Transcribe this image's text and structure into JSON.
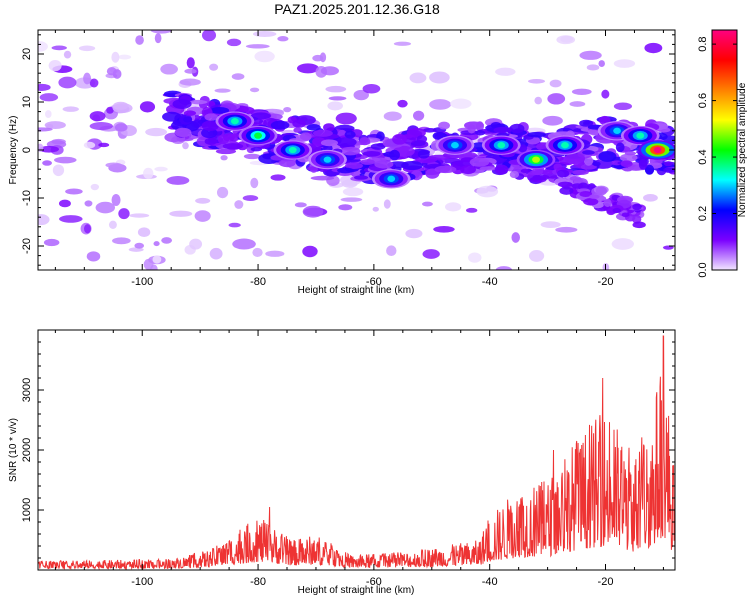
{
  "title": "PAZ1.2025.201.12.36.G18",
  "chart_data": [
    {
      "type": "heatmap",
      "xlabel": "Height of straight line (km)",
      "ylabel": "Frequency (Hz)",
      "xlim": [
        -118,
        -8
      ],
      "ylim": [
        -25,
        25
      ],
      "xticks": [
        -100,
        -80,
        -60,
        -40,
        -20
      ],
      "yticks": [
        -20,
        -10,
        0,
        10,
        20
      ],
      "colorbar": {
        "label": "Normalized spectral amplitude",
        "range": [
          0,
          0.85
        ],
        "ticks": [
          0.0,
          0.2,
          0.4,
          0.6,
          0.8
        ],
        "colors": [
          "#f2e6ff",
          "#7a00ff",
          "#0000ff",
          "#00ffff",
          "#00ff00",
          "#ffff00",
          "#ff8000",
          "#ff0000",
          "#ff0080"
        ]
      },
      "ridge": [
        {
          "x": -110,
          "y": 10
        },
        {
          "x": -100,
          "y": 8
        },
        {
          "x": -90,
          "y": 6
        },
        {
          "x": -80,
          "y": 3
        },
        {
          "x": -70,
          "y": 1
        },
        {
          "x": -60,
          "y": -2
        },
        {
          "x": -50,
          "y": 0
        },
        {
          "x": -40,
          "y": 1
        },
        {
          "x": -30,
          "y": -2
        },
        {
          "x": -20,
          "y": 2
        },
        {
          "x": -10,
          "y": 0
        }
      ],
      "peaks": [
        {
          "x": -84,
          "y": 6,
          "v": 0.35
        },
        {
          "x": -80,
          "y": 3,
          "v": 0.4
        },
        {
          "x": -74,
          "y": 0,
          "v": 0.35
        },
        {
          "x": -68,
          "y": -2,
          "v": 0.3
        },
        {
          "x": -57,
          "y": -6,
          "v": 0.3
        },
        {
          "x": -46,
          "y": 1,
          "v": 0.3
        },
        {
          "x": -38,
          "y": 1,
          "v": 0.35
        },
        {
          "x": -32,
          "y": -2,
          "v": 0.5
        },
        {
          "x": -27,
          "y": 1,
          "v": 0.35
        },
        {
          "x": -18,
          "y": 4,
          "v": 0.3
        },
        {
          "x": -14,
          "y": 3,
          "v": 0.35
        },
        {
          "x": -11,
          "y": 0,
          "v": 0.85
        }
      ]
    },
    {
      "type": "line",
      "xlabel": "Height of straight line (km)",
      "ylabel": "SNR (10 * v/v)",
      "xlim": [
        -118,
        -8
      ],
      "ylim": [
        0,
        4000
      ],
      "xticks": [
        -100,
        -80,
        -60,
        -40,
        -20
      ],
      "yticks": [
        1000,
        2000,
        3000
      ],
      "color": "#ee3333",
      "envelope": [
        {
          "x": -118,
          "y": 150
        },
        {
          "x": -95,
          "y": 180
        },
        {
          "x": -88,
          "y": 350
        },
        {
          "x": -80,
          "y": 900
        },
        {
          "x": -74,
          "y": 500
        },
        {
          "x": -70,
          "y": 600
        },
        {
          "x": -64,
          "y": 250
        },
        {
          "x": -55,
          "y": 300
        },
        {
          "x": -48,
          "y": 400
        },
        {
          "x": -42,
          "y": 500
        },
        {
          "x": -40,
          "y": 900
        },
        {
          "x": -35,
          "y": 1400
        },
        {
          "x": -30,
          "y": 1500
        },
        {
          "x": -26,
          "y": 2100
        },
        {
          "x": -20,
          "y": 2700
        },
        {
          "x": -15,
          "y": 2000
        },
        {
          "x": -12,
          "y": 2600
        },
        {
          "x": -10,
          "y": 3800
        },
        {
          "x": -8,
          "y": 1500
        }
      ],
      "peaks": [
        {
          "x": -20.5,
          "y": 3200
        },
        {
          "x": -10,
          "y": 3900
        },
        {
          "x": -25,
          "y": 2150
        },
        {
          "x": -78,
          "y": 1050
        },
        {
          "x": -29,
          "y": 2000
        }
      ]
    }
  ]
}
